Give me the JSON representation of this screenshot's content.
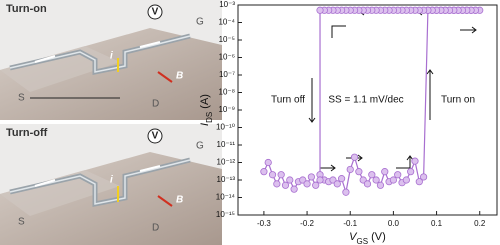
{
  "illustration": {
    "panels": [
      {
        "title": "Turn-on",
        "labels": {
          "s": "S",
          "d": "D",
          "g": "G",
          "v": "V",
          "i": "i",
          "b": "B"
        }
      },
      {
        "title": "Turn-off",
        "labels": {
          "s": "S",
          "d": "D",
          "g": "G",
          "v": "V",
          "i": "i",
          "b": "B"
        }
      }
    ]
  },
  "chart_data": {
    "type": "line",
    "ylog": true,
    "xlabel": {
      "main": "V",
      "sub": "GS",
      "unit": " (V)"
    },
    "ylabel": {
      "main": "I",
      "sub": "DS",
      "unit": " (A)"
    },
    "color": "#a86fd0",
    "marker_fill": "#dcc0ee",
    "annotations": [
      "Turn off",
      "SS = 1.1 mV/dec",
      "Turn on"
    ],
    "xlim": [
      -0.36,
      0.24
    ],
    "ylim": [
      1e-15,
      0.001
    ],
    "xticks": [
      -0.3,
      -0.2,
      -0.1,
      {
        "value": 0,
        "label": "0.0"
      },
      0.1,
      0.2
    ],
    "yticks": [
      {
        "value": 1e-15,
        "label": "10⁻¹⁵"
      },
      {
        "value": 1e-14,
        "label": "10⁻¹⁴"
      },
      {
        "value": 1e-13,
        "label": "10⁻¹³"
      },
      {
        "value": 1e-12,
        "label": "10⁻¹²"
      },
      {
        "value": 1e-11,
        "label": "10⁻¹¹"
      },
      {
        "value": 1e-10,
        "label": "10⁻¹⁰"
      },
      {
        "value": 1e-09,
        "label": "10⁻⁹"
      },
      {
        "value": 1e-08,
        "label": "10⁻⁸"
      },
      {
        "value": 1e-07,
        "label": "10⁻⁷"
      },
      {
        "value": 1e-06,
        "label": "10⁻⁶"
      },
      {
        "value": 1e-05,
        "label": "10⁻⁵"
      },
      {
        "value": 0.0001,
        "label": "10⁻⁴"
      },
      {
        "value": 0.001,
        "label": "10⁻³"
      }
    ],
    "x": [
      -0.3,
      -0.29,
      -0.28,
      -0.27,
      -0.26,
      -0.25,
      -0.24,
      -0.23,
      -0.22,
      -0.21,
      -0.2,
      -0.19,
      -0.18,
      -0.17,
      -0.16,
      -0.15,
      -0.14,
      -0.13,
      -0.12,
      -0.11,
      -0.1,
      -0.09,
      -0.08,
      -0.07,
      -0.06,
      -0.05,
      -0.04,
      -0.03,
      -0.02,
      -0.01,
      0,
      0.01,
      0.02,
      0.03,
      0.04,
      0.05,
      0.06,
      0.07,
      0.08,
      0.09,
      0.1,
      0.11,
      0.12,
      0.13,
      0.14,
      0.15,
      0.16,
      0.17,
      0.18,
      0.19,
      0.2,
      0.19,
      0.18,
      0.17,
      0.16,
      0.15,
      0.14,
      0.13,
      0.12,
      0.11,
      0.1,
      0.09,
      0.08,
      0.07,
      0.06,
      0.05,
      0.04,
      0.03,
      0.02,
      0.01,
      0,
      -0.01,
      -0.02,
      -0.03,
      -0.04,
      -0.05,
      -0.06,
      -0.07,
      -0.08,
      -0.09,
      -0.1,
      -0.11,
      -0.12,
      -0.13,
      -0.14,
      -0.15,
      -0.16,
      -0.17,
      -0.17
    ],
    "values": [
      3e-13,
      1e-12,
      2e-13,
      6e-14,
      2e-13,
      5e-14,
      1e-13,
      3e-14,
      8e-14,
      1e-13,
      6e-14,
      1.5e-13,
      5e-14,
      2e-13,
      1e-13,
      8e-14,
      1e-13,
      6e-14,
      1.2e-13,
      2e-14,
      4e-13,
      2e-12,
      3e-13,
      1e-13,
      6e-14,
      2e-13,
      1e-13,
      5e-14,
      3e-13,
      8e-14,
      1e-13,
      2e-13,
      7e-14,
      1e-13,
      3e-13,
      1.2e-12,
      8e-14,
      1.5e-13,
      0.0005,
      0.0005,
      0.0005,
      0.0005,
      0.0005,
      0.0005,
      0.0005,
      0.0005,
      0.0005,
      0.0005,
      0.0005,
      0.0005,
      0.0005,
      0.0005,
      0.0005,
      0.0005,
      0.0005,
      0.0005,
      0.0005,
      0.0005,
      0.0005,
      0.0005,
      0.0005,
      0.0005,
      0.0005,
      0.0005,
      0.0005,
      0.0005,
      0.0005,
      0.0005,
      0.0005,
      0.0005,
      0.0005,
      0.0005,
      0.0005,
      0.0005,
      0.0005,
      0.0005,
      0.0005,
      0.0005,
      0.0005,
      0.0005,
      0.0005,
      0.0005,
      0.0005,
      0.0005,
      0.0005,
      0.0005,
      0.0005,
      0.0005,
      1e-13
    ]
  }
}
